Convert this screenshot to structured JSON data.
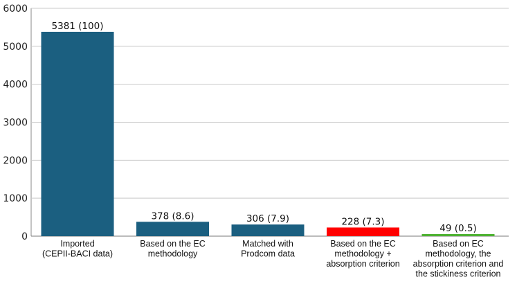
{
  "chart_data": {
    "type": "bar",
    "title": "",
    "xlabel": "",
    "ylabel": "",
    "ylim": [
      0,
      6000
    ],
    "yticks": [
      0,
      1000,
      2000,
      3000,
      4000,
      5000,
      6000
    ],
    "grid": true,
    "categories": [
      [
        "Imported",
        "(CEPII-BACI data)"
      ],
      [
        "Based on the EC",
        "methodology"
      ],
      [
        "Matched with",
        "Prodcom data"
      ],
      [
        "Based on the EC",
        "methodology +",
        "absorption criterion"
      ],
      [
        "Based on EC",
        "methodology, the",
        "absorption criterion and",
        "the stickiness criterion"
      ]
    ],
    "values": [
      5381,
      378,
      306,
      228,
      49
    ],
    "data_labels": [
      "5381 (100)",
      "378 (8.6)",
      "306 (7.9)",
      "228 (7.3)",
      "49 (0.5)"
    ],
    "colors": [
      "#1b5f80",
      "#1b5f80",
      "#1b5f80",
      "#ff0000",
      "#4fb233"
    ]
  }
}
